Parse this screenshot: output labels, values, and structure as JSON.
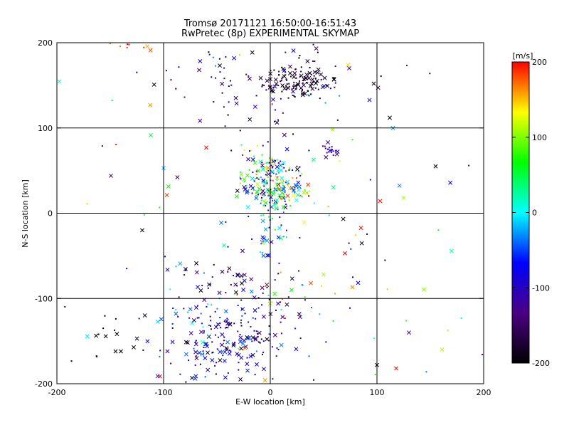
{
  "chart_data": {
    "type": "scatter",
    "title": "Tromsø 20171121 16:50:00-16:51:43",
    "subtitle": "RwPretec (8p) EXPERIMENTAL SKYMAP",
    "xlabel": "E-W location [km]",
    "ylabel": "N-S location [km]",
    "xlim": [
      -200,
      200
    ],
    "ylim": [
      -200,
      200
    ],
    "x_ticks": [
      -200,
      -100,
      0,
      100,
      200
    ],
    "y_ticks": [
      -200,
      -100,
      0,
      100,
      200
    ],
    "grid": true,
    "colorbar": {
      "label": "[m/s]",
      "range": [
        -200,
        200
      ],
      "ticks": [
        200,
        100,
        0,
        -100,
        -200
      ],
      "colormap": [
        "#000000",
        "#4b0082",
        "#0000ff",
        "#00ffff",
        "#00ff00",
        "#ffff00",
        "#ff0000"
      ]
    },
    "clusters": [
      {
        "x": 25,
        "y": 155,
        "sx": 18,
        "sy": 10,
        "n": 120,
        "vmin": -200,
        "vmax": -160
      },
      {
        "x": -20,
        "y": 150,
        "sx": 45,
        "sy": 30,
        "n": 70,
        "vmin": -200,
        "vmax": -70
      },
      {
        "x": 0,
        "y": 40,
        "sx": 15,
        "sy": 18,
        "n": 170,
        "vmin": -200,
        "vmax": 200
      },
      {
        "x": 20,
        "y": 25,
        "sx": 12,
        "sy": 6,
        "n": 40,
        "vmin": -60,
        "vmax": 200
      },
      {
        "x": 55,
        "y": 72,
        "sx": 4,
        "sy": 4,
        "n": 18,
        "vmin": -150,
        "vmax": -80
      },
      {
        "x": 0,
        "y": 0,
        "sx": 6,
        "sy": 30,
        "n": 50,
        "vmin": -100,
        "vmax": 60
      },
      {
        "x": -40,
        "y": -150,
        "sx": 28,
        "sy": 25,
        "n": 180,
        "vmin": -200,
        "vmax": -30
      },
      {
        "x": -30,
        "y": -80,
        "sx": 25,
        "sy": 15,
        "n": 40,
        "vmin": -200,
        "vmax": -80
      },
      {
        "x": 15,
        "y": -95,
        "sx": 20,
        "sy": 25,
        "n": 30,
        "vmin": -200,
        "vmax": 200
      },
      {
        "x": -75,
        "y": -110,
        "sx": 25,
        "sy": 30,
        "n": 35,
        "vmin": -130,
        "vmax": 20
      },
      {
        "x": -150,
        "y": -150,
        "sx": 20,
        "sy": 15,
        "n": 12,
        "vmin": -200,
        "vmax": -190
      },
      {
        "x": -130,
        "y": 195,
        "sx": 15,
        "sy": 5,
        "n": 12,
        "vmin": 150,
        "vmax": 200
      },
      {
        "x": 0,
        "y": 0,
        "sx": 120,
        "sy": 120,
        "n": 110,
        "vmin": -200,
        "vmax": 200
      }
    ],
    "points": [
      {
        "x": 125,
        "y": 18,
        "v": 110,
        "m": "x"
      },
      {
        "x": 155,
        "y": 55,
        "v": -200,
        "m": "x"
      },
      {
        "x": 118,
        "y": -182,
        "v": 200,
        "m": "x"
      },
      {
        "x": 100,
        "y": -178,
        "v": -200,
        "m": "x"
      },
      {
        "x": 130,
        "y": -140,
        "v": -120,
        "m": "x"
      },
      {
        "x": 70,
        "y": -47,
        "v": 200,
        "m": "x"
      },
      {
        "x": 38,
        "y": -82,
        "v": 180,
        "m": "x"
      },
      {
        "x": -145,
        "y": -162,
        "v": -200,
        "m": "x"
      },
      {
        "x": -140,
        "y": -162,
        "v": -200,
        "m": "x"
      },
      {
        "x": -125,
        "y": -147,
        "v": -200,
        "m": "x"
      },
      {
        "x": -120,
        "y": -20,
        "v": -200,
        "m": "x"
      },
      {
        "x": -100,
        "y": 53,
        "v": -20,
        "m": "x"
      },
      {
        "x": -60,
        "y": 77,
        "v": 200,
        "m": "x"
      },
      {
        "x": 115,
        "y": 100,
        "v": -20,
        "m": "x"
      },
      {
        "x": 112,
        "y": 112,
        "v": -200,
        "m": "x"
      },
      {
        "x": 97,
        "y": 152,
        "v": -200,
        "m": "x"
      },
      {
        "x": 74,
        "y": 170,
        "v": -120,
        "m": "x"
      }
    ]
  }
}
